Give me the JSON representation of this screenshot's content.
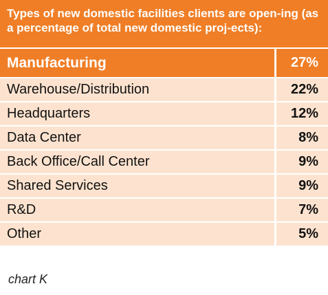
{
  "chart_data": {
    "type": "table",
    "title": "Types of new domestic facilities clients are open-ing (as a percentage of total new domestic proj-ects):",
    "rows": [
      {
        "label": "Manufacturing",
        "value_label": "27%",
        "value": 27
      },
      {
        "label": "Warehouse/Distribution",
        "value_label": "22%",
        "value": 22
      },
      {
        "label": "Headquarters",
        "value_label": "12%",
        "value": 12
      },
      {
        "label": "Data Center",
        "value_label": "8%",
        "value": 8
      },
      {
        "label": "Back Office/Call Center",
        "value_label": "9%",
        "value": 9
      },
      {
        "label": "Shared Services",
        "value_label": "9%",
        "value": 9
      },
      {
        "label": "R&D",
        "value_label": "7%",
        "value": 7
      },
      {
        "label": "Other",
        "value_label": "5%",
        "value": 5
      }
    ],
    "caption": "chart K"
  },
  "colors": {
    "accent": "#f07e26",
    "row_fill": "#fde3cf",
    "header_text": "#ffffff"
  }
}
